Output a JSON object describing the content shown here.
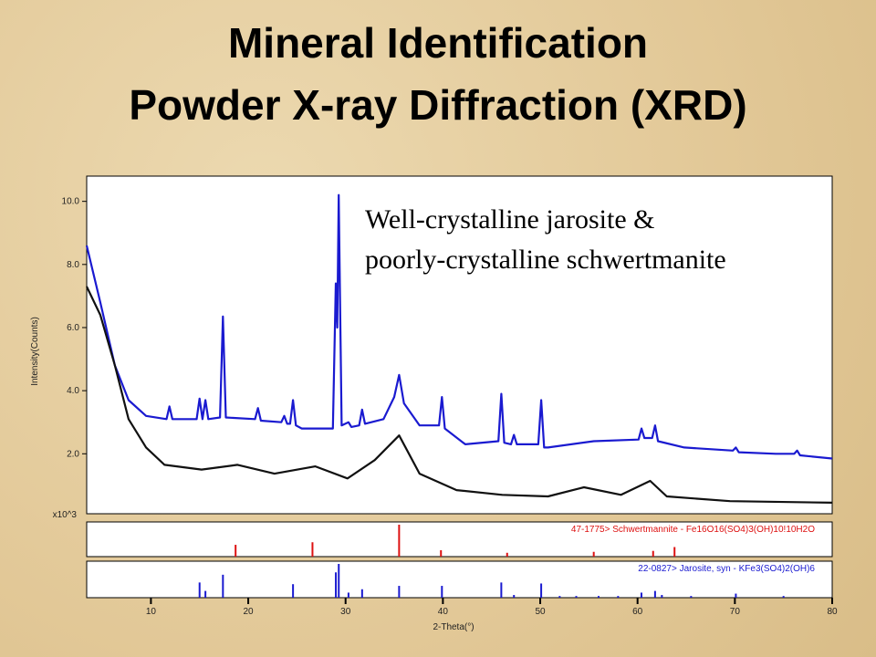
{
  "chart_data": {
    "type": "line",
    "title": "Mineral Identification",
    "subtitle": "Powder X-ray Diffraction (XRD)",
    "annotations": [
      "Well-crystalline jarosite &",
      "poorly-crystalline schwertmanite"
    ],
    "y_label": "Intensity(Counts)",
    "y_multiplier": "x10^3",
    "x_label": "2-Theta(°)",
    "xlim": [
      3.4,
      80
    ],
    "xticks": [
      10,
      20,
      30,
      40,
      50,
      60,
      70,
      80
    ],
    "ylim": [
      0.1,
      10.8
    ],
    "yticks": [
      {
        "value": 2,
        "label": "2.0"
      },
      {
        "value": 4,
        "label": "4.0"
      },
      {
        "value": 6,
        "label": "6.0"
      },
      {
        "value": 8,
        "label": "8.0"
      },
      {
        "value": 10,
        "label": "10.0"
      }
    ],
    "series": [
      {
        "color": "#1a1ad0",
        "x": [
          3.4,
          4.8,
          6.3,
          7.7,
          9.5,
          11.6,
          11.9,
          12.2,
          14.7,
          15.0,
          15.3,
          15.6,
          15.9,
          17.1,
          17.4,
          17.7,
          20.7,
          21.0,
          21.3,
          23.4,
          23.7,
          24.0,
          24.3,
          24.6,
          24.9,
          25.5,
          28.7,
          29.0,
          29.15,
          29.3,
          29.6,
          30.3,
          30.6,
          31.4,
          31.7,
          32.0,
          33.9,
          35.0,
          35.5,
          36.0,
          37.6,
          39.6,
          39.9,
          40.2,
          42.3,
          45.7,
          46.0,
          46.3,
          47.0,
          47.3,
          47.6,
          49.8,
          50.1,
          50.4,
          50.8,
          55.5,
          60.1,
          60.4,
          60.7,
          61.5,
          61.8,
          62.1,
          64.8,
          69.8,
          70.1,
          70.4,
          74.2,
          76.1,
          76.4,
          76.7,
          80
        ],
        "values": [
          8.6,
          6.8,
          4.8,
          3.7,
          3.2,
          3.1,
          3.5,
          3.1,
          3.1,
          3.75,
          3.1,
          3.7,
          3.1,
          3.15,
          6.35,
          3.15,
          3.1,
          3.45,
          3.05,
          3.0,
          3.2,
          2.95,
          2.95,
          3.7,
          2.9,
          2.8,
          2.8,
          7.4,
          6.0,
          10.2,
          2.9,
          3.0,
          2.85,
          2.9,
          3.4,
          2.95,
          3.1,
          3.8,
          4.5,
          3.6,
          2.9,
          2.9,
          3.8,
          2.8,
          2.3,
          2.4,
          3.9,
          2.35,
          2.3,
          2.6,
          2.3,
          2.3,
          3.7,
          2.2,
          2.2,
          2.4,
          2.45,
          2.8,
          2.5,
          2.5,
          2.9,
          2.4,
          2.2,
          2.1,
          2.2,
          2.05,
          2.0,
          2.0,
          2.1,
          1.95,
          1.85
        ]
      },
      {
        "color": "#111111",
        "x": [
          3.4,
          4.8,
          6.3,
          7.7,
          9.5,
          11.4,
          15.2,
          18.9,
          22.7,
          26.9,
          30.2,
          33.0,
          35.5,
          37.6,
          41.4,
          46.1,
          50.8,
          54.5,
          58.3,
          61.3,
          63.0,
          69.5,
          80
        ],
        "values": [
          7.3,
          6.4,
          4.8,
          3.1,
          2.2,
          1.65,
          1.5,
          1.65,
          1.37,
          1.6,
          1.22,
          1.8,
          2.58,
          1.37,
          0.85,
          0.7,
          0.65,
          0.94,
          0.7,
          1.14,
          0.65,
          0.5,
          0.45
        ]
      }
    ],
    "reference_patterns": [
      {
        "name": "47-1775> Schwertmannite - Fe16O16(SO4)3(OH)10!10H2O",
        "color": "#dd1111",
        "x": [
          18.7,
          26.6,
          35.5,
          39.8,
          46.6,
          55.5,
          61.6,
          63.8
        ],
        "values": [
          37,
          45,
          100,
          20,
          12,
          15,
          18,
          30
        ]
      },
      {
        "name": "22-0827> Jarosite, syn - KFe3(SO4)2(OH)6",
        "color": "#1a1ad0",
        "x": [
          15.0,
          15.6,
          17.4,
          24.6,
          29.0,
          29.3,
          30.3,
          31.7,
          35.5,
          39.9,
          46.0,
          47.3,
          50.1,
          52.0,
          53.7,
          56.0,
          58.0,
          60.4,
          61.8,
          62.5,
          65.5,
          70.1,
          75.0
        ],
        "values": [
          45,
          20,
          68,
          40,
          75,
          100,
          15,
          25,
          35,
          35,
          45,
          8,
          42,
          5,
          5,
          5,
          5,
          15,
          20,
          8,
          5,
          12,
          5
        ]
      }
    ]
  }
}
